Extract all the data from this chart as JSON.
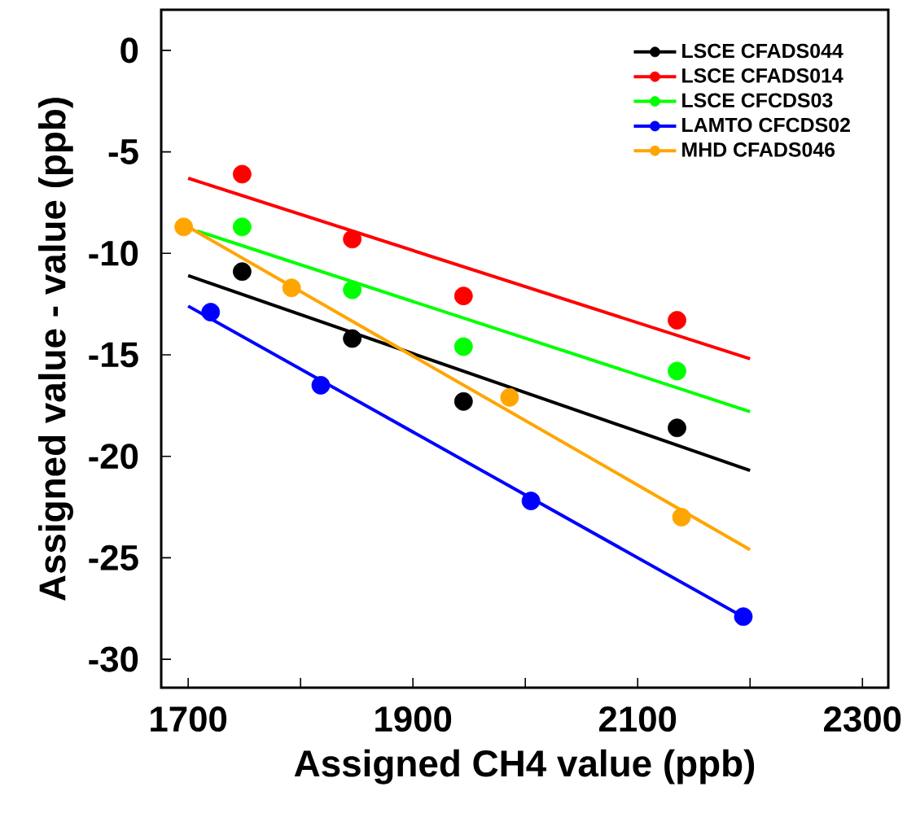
{
  "chart_data": {
    "type": "scatter",
    "xlabel": "Assigned CH4 value (ppb)",
    "ylabel": "Assigned value - value (ppb)",
    "xlim": [
      1676,
      2323
    ],
    "ylim": [
      -31.4,
      2
    ],
    "xticks": [
      1700,
      {
        "value": 1800,
        "label": null
      },
      1900,
      {
        "value": 2000,
        "label": null
      },
      2100,
      {
        "value": 2200,
        "label": null
      },
      2300
    ],
    "yticks": [
      -30,
      -25,
      -20,
      -15,
      -10,
      -5,
      0
    ],
    "marker": "circle",
    "legend": "top right",
    "series": [
      {
        "name": "LSCE CFADS044",
        "color": "#000000",
        "x": [
          1748,
          1846,
          1945,
          2135
        ],
        "values": [
          -10.9,
          -14.2,
          -17.3,
          -18.6
        ]
      },
      {
        "name": "LSCE CFADS014",
        "color": "#ff0000",
        "x": [
          1748,
          1846,
          1945,
          2135
        ],
        "values": [
          -6.1,
          -9.3,
          -12.1,
          -13.3
        ]
      },
      {
        "name": "LSCE CFCDS03",
        "color": "#00ff00",
        "x": [
          1748,
          1846,
          1945,
          2135
        ],
        "values": [
          -8.7,
          -11.8,
          -14.6,
          -15.8
        ]
      },
      {
        "name": "LAMTO CFCDS02",
        "color": "#0000ff",
        "x": [
          1720,
          1818,
          2005,
          2194
        ],
        "values": [
          -12.9,
          -16.5,
          -22.2,
          -27.9
        ]
      },
      {
        "name": "MHD CFADS046",
        "color": "#ffa500",
        "x": [
          1696,
          1792,
          1986,
          2139
        ],
        "values": [
          -8.7,
          -11.7,
          -17.1,
          -23.0
        ]
      },
      {
        "type": "line",
        "marker": "none",
        "color": "#000000",
        "x": [
          1700,
          2200
        ],
        "values": [
          -11.1,
          -20.7
        ]
      },
      {
        "type": "line",
        "marker": "none",
        "color": "#ff0000",
        "x": [
          1700,
          2200
        ],
        "values": [
          -6.3,
          -15.2
        ]
      },
      {
        "type": "line",
        "marker": "none",
        "color": "#00ff00",
        "x": [
          1708,
          2200
        ],
        "values": [
          -8.9,
          -17.8
        ]
      },
      {
        "type": "line",
        "marker": "none",
        "color": "#0000ff",
        "x": [
          1700,
          2200
        ],
        "values": [
          -12.6,
          -28.1
        ]
      },
      {
        "type": "line",
        "marker": "none",
        "color": "#ffa500",
        "x": [
          1700,
          2200
        ],
        "values": [
          -8.7,
          -24.6
        ]
      }
    ]
  }
}
